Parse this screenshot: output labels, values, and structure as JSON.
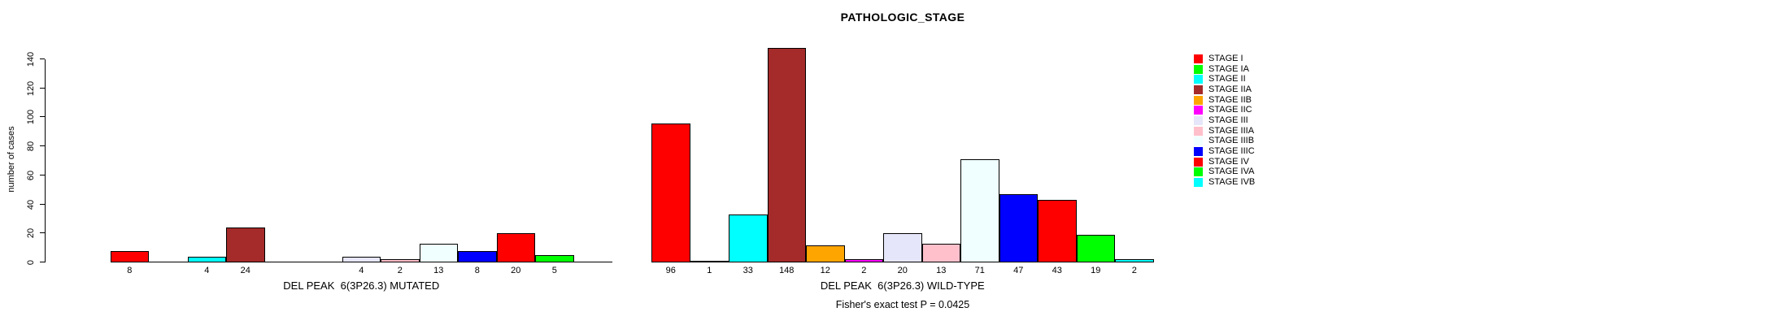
{
  "title": "PATHOLOGIC_STAGE",
  "chart_data": {
    "type": "bar",
    "title": "PATHOLOGIC_STAGE",
    "xlabel": "",
    "ylabel": "number of cases",
    "ylim": [
      0,
      140
    ],
    "yticks": [
      0,
      20,
      40,
      60,
      80,
      100,
      120,
      140
    ],
    "grid": false,
    "legend_position": "right",
    "categories": [
      {
        "label": "STAGE I",
        "color": "#FF0000"
      },
      {
        "label": "STAGE IA",
        "color": "#00FF00"
      },
      {
        "label": "STAGE II",
        "color": "#00FFFF"
      },
      {
        "label": "STAGE IIA",
        "color": "#A52A2A"
      },
      {
        "label": "STAGE IIB",
        "color": "#FFA500"
      },
      {
        "label": "STAGE IIC",
        "color": "#FF00FF"
      },
      {
        "label": "STAGE III",
        "color": "#E6E6FA"
      },
      {
        "label": "STAGE IIIA",
        "color": "#FFC0CB"
      },
      {
        "label": "STAGE IIIB",
        "color": "#F0FFFF"
      },
      {
        "label": "STAGE IIIC",
        "color": "#0000FF"
      },
      {
        "label": "STAGE IV",
        "color": "#FF0000"
      },
      {
        "label": "STAGE IVA",
        "color": "#00FF00"
      },
      {
        "label": "STAGE IVB",
        "color": "#00FFFF"
      }
    ],
    "series": [
      {
        "name": "DEL PEAK  6(3P26.3) MUTATED",
        "values": [
          8,
          0,
          4,
          24,
          0,
          0,
          4,
          2,
          13,
          8,
          20,
          5,
          0
        ]
      },
      {
        "name": "DEL PEAK  6(3P26.3) WILD-TYPE",
        "values": [
          96,
          1,
          33,
          148,
          12,
          2,
          20,
          13,
          71,
          47,
          43,
          19,
          2
        ]
      }
    ],
    "footnote": "Fisher's exact test P = 0.0425"
  }
}
